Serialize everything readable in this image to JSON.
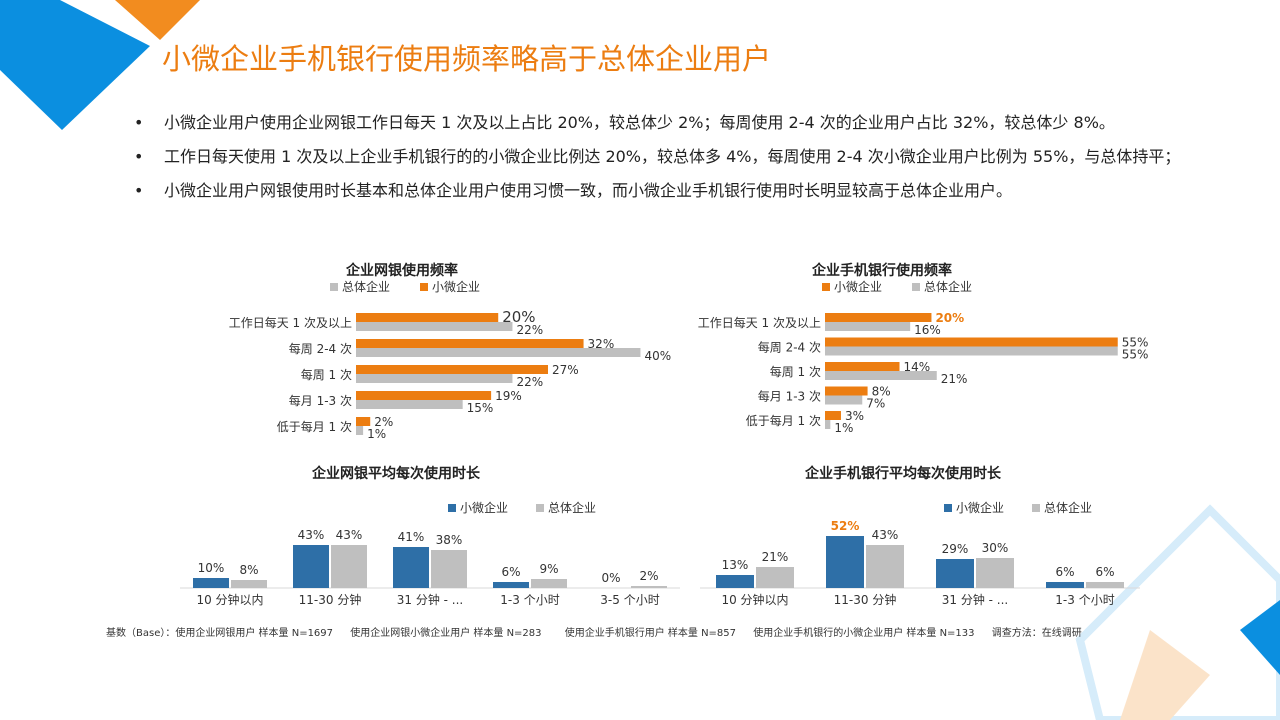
{
  "title": "小微企业手机银行使用频率略高于总体企业用户",
  "bullets": [
    "小微企业用户使用企业网银工作日每天 1 次及以上占比 20%，较总体少 2%；每周使用 2-4 次的企业用户占比 32%，较总体少 8%。",
    "工作日每天使用 1 次及以上企业手机银行的的小微企业比例达 20%，较总体多 4%，每周使用 2-4 次小微企业用户比例为 55%，与总体持平；",
    "小微企业用户网银使用时长基本和总体企业用户使用习惯一致，而小微企业手机银行使用时长明显较高于总体企业用户。"
  ],
  "bullet_symbol": "•",
  "colors": {
    "orange": "#EC7D11",
    "gray": "#BFBFBF",
    "blue": "#2E6FA7",
    "accent_blue": "#0B8FE0"
  },
  "chart_data": [
    {
      "type": "bar",
      "orientation": "horizontal",
      "title": "企业网银使用频率",
      "categories": [
        "工作日每天 1 次及以上",
        "每周 2-4 次",
        "每周 1 次",
        "每月 1-3 次",
        "低于每月 1 次"
      ],
      "series": [
        {
          "name": "小微企业",
          "values": [
            20,
            32,
            27,
            19,
            2
          ],
          "labels": [
            "20%",
            "32%",
            "27%",
            "19%",
            "2%"
          ]
        },
        {
          "name": "总体企业",
          "values": [
            22,
            40,
            22,
            15,
            1
          ],
          "labels": [
            "22%",
            "40%",
            "22%",
            "15%",
            "1%"
          ]
        }
      ],
      "legend_order": [
        "总体企业",
        "小微企业"
      ],
      "xlim": [
        0,
        45
      ],
      "legend": "top"
    },
    {
      "type": "bar",
      "orientation": "horizontal",
      "title": "企业手机银行使用频率",
      "categories": [
        "工作日每天 1 次及以上",
        "每周 2-4 次",
        "每周 1 次",
        "每月 1-3 次",
        "低于每月 1 次"
      ],
      "series": [
        {
          "name": "小微企业",
          "values": [
            20,
            55,
            14,
            8,
            3
          ],
          "labels": [
            "20%",
            "55%",
            "14%",
            "8%",
            "3%"
          ]
        },
        {
          "name": "总体企业",
          "values": [
            16,
            55,
            21,
            7,
            1
          ],
          "labels": [
            "16%",
            "55%",
            "21%",
            "7%",
            "1%"
          ]
        }
      ],
      "legend_order": [
        "小微企业",
        "总体企业"
      ],
      "xlim": [
        0,
        62
      ],
      "legend": "top"
    },
    {
      "type": "bar",
      "orientation": "vertical",
      "title": "企业网银平均每次使用时长",
      "categories": [
        "10 分钟以内",
        "11-30 分钟",
        "31 分钟 - ...",
        "1-3 个小时",
        "3-5 个小时"
      ],
      "series": [
        {
          "name": "小微企业",
          "values": [
            10,
            43,
            41,
            6,
            0
          ],
          "labels": [
            "10%",
            "43%",
            "41%",
            "6%",
            "0%"
          ]
        },
        {
          "name": "总体企业",
          "values": [
            8,
            43,
            38,
            9,
            2
          ],
          "labels": [
            "8%",
            "43%",
            "38%",
            "9%",
            "2%"
          ]
        }
      ],
      "ylim": [
        0,
        60
      ],
      "legend": "top-right"
    },
    {
      "type": "bar",
      "orientation": "vertical",
      "title": "企业手机银行平均每次使用时长",
      "categories": [
        "10 分钟以内",
        "11-30 分钟",
        "31 分钟 - ...",
        "1-3 个小时"
      ],
      "series": [
        {
          "name": "小微企业",
          "values": [
            13,
            52,
            29,
            6
          ],
          "labels": [
            "13%",
            "52%",
            "29%",
            "6%"
          ]
        },
        {
          "name": "总体企业",
          "values": [
            21,
            43,
            30,
            6
          ],
          "labels": [
            "21%",
            "43%",
            "30%",
            "6%"
          ]
        }
      ],
      "ylim": [
        0,
        60
      ],
      "legend": "top-right"
    }
  ],
  "footer": [
    "基数（Base）：使用企业网银用户 样本量 N=1697",
    "使用企业网银小微企业用户 样本量 N=283",
    "使用企业手机银行用户 样本量 N=857",
    "使用企业手机银行的小微企业用户 样本量 N=133",
    "调查方法：在线调研"
  ]
}
